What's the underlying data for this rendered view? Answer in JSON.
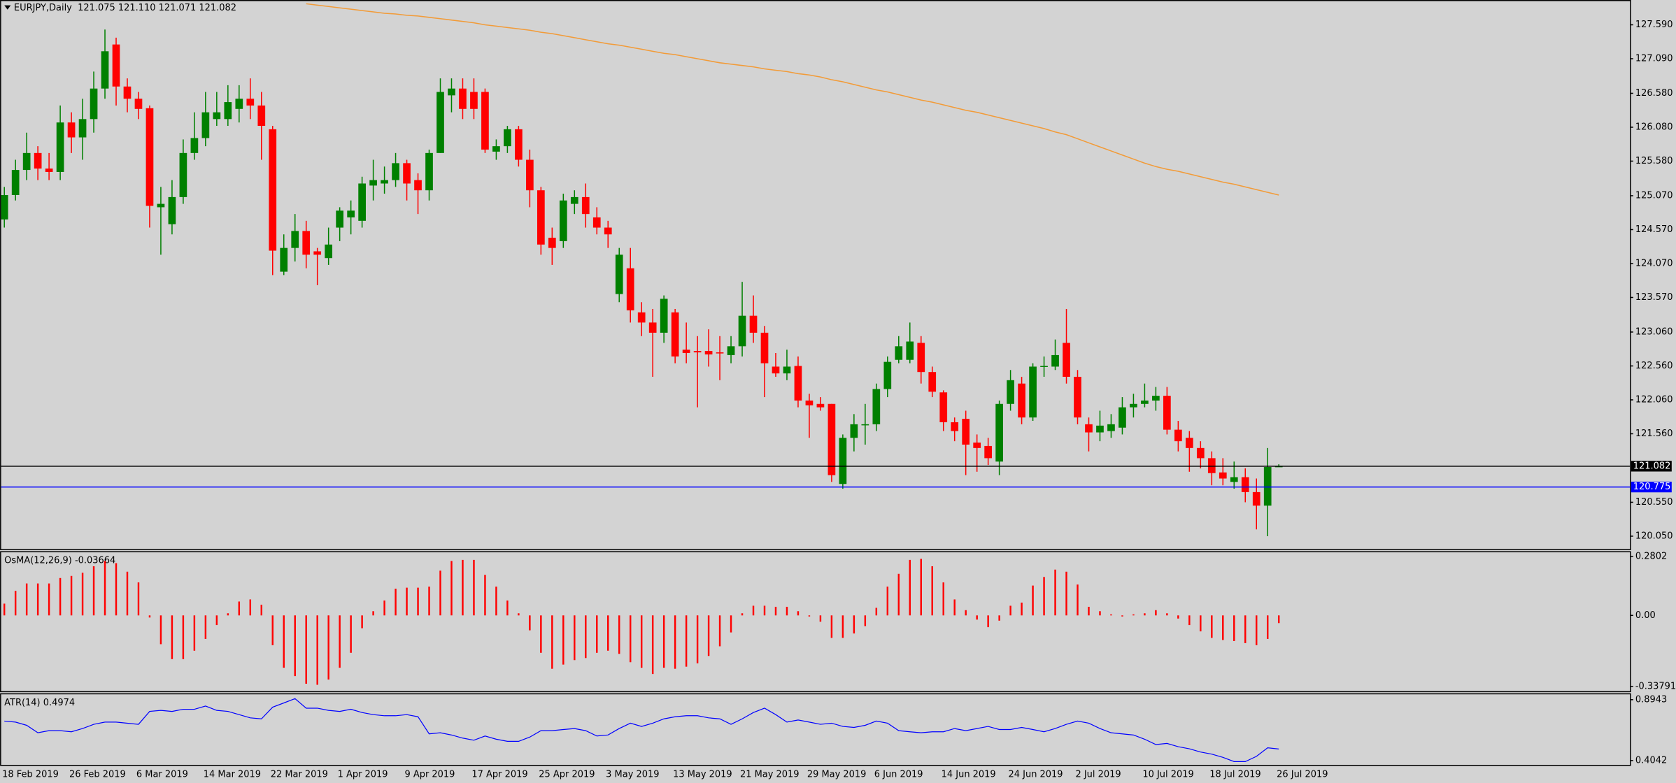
{
  "chart_data": [
    {
      "type": "candlestick",
      "title": "EURJPY,Daily  121.075 121.110 121.071 121.082",
      "categories": [
        "18 Feb 2019",
        null,
        null,
        null,
        null,
        null,
        "26 Feb 2019",
        null,
        null,
        null,
        null,
        null,
        "6 Mar 2019",
        null,
        null,
        null,
        null,
        null,
        "14 Mar 2019",
        null,
        null,
        null,
        null,
        null,
        "22 Mar 2019",
        null,
        null,
        null,
        null,
        null,
        "1 Apr 2019",
        null,
        null,
        null,
        null,
        null,
        "9 Apr 2019",
        null,
        null,
        null,
        null,
        null,
        "17 Apr 2019",
        null,
        null,
        null,
        null,
        null,
        "25 Apr 2019",
        null,
        null,
        null,
        null,
        null,
        "3 May 2019",
        null,
        null,
        null,
        null,
        null,
        "13 May 2019",
        null,
        null,
        null,
        null,
        null,
        "21 May 2019",
        null,
        null,
        null,
        null,
        null,
        "29 May 2019",
        null,
        null,
        null,
        null,
        null,
        "6 Jun 2019",
        null,
        null,
        null,
        null,
        null,
        "14 Jun 2019",
        null,
        null,
        null,
        null,
        null,
        "24 Jun 2019",
        null,
        null,
        null,
        null,
        null,
        "2 Jul 2019",
        null,
        null,
        null,
        null,
        null,
        "10 Jul 2019",
        null,
        null,
        null,
        null,
        null,
        "18 Jul 2019",
        null,
        null,
        null,
        null,
        null,
        "26 Jul 2019"
      ],
      "open": [
        124.72,
        125.08,
        125.45,
        125.7,
        125.47,
        125.42,
        126.15,
        125.93,
        126.2,
        126.65,
        127.3,
        126.68,
        126.5,
        126.36,
        124.9,
        124.65,
        125.05,
        125.7,
        125.92,
        126.2,
        126.2,
        126.35,
        126.5,
        126.4,
        126.05,
        123.95,
        124.3,
        124.55,
        124.25,
        124.15,
        124.6,
        124.75,
        124.7,
        125.22,
        125.25,
        125.3,
        125.55,
        125.3,
        125.15,
        125.7,
        126.55,
        126.65,
        126.6,
        126.6,
        125.72,
        125.8,
        126.05,
        125.6,
        125.15,
        124.45,
        124.4,
        124.95,
        125.05,
        124.75,
        124.6,
        123.62,
        124.0,
        123.35,
        123.2,
        123.05,
        123.35,
        122.8,
        122.78,
        122.78,
        122.76,
        122.72,
        122.85,
        123.3,
        123.05,
        122.55,
        122.45,
        122.56,
        122.05,
        122.0,
        122.0,
        120.82,
        121.5,
        121.7,
        121.7,
        122.22,
        122.65,
        122.65,
        122.9,
        122.47,
        122.17,
        121.73,
        121.78,
        121.43,
        121.38,
        121.15,
        122.0,
        122.3,
        121.8,
        122.55,
        122.55,
        122.9,
        122.4,
        121.7,
        121.58,
        121.6,
        121.65,
        121.95,
        122.0,
        122.05,
        122.12,
        121.62,
        121.5,
        121.35,
        121.2,
        120.99,
        120.85,
        120.92,
        120.7,
        120.5,
        121.075
      ],
      "high": [
        125.2,
        125.6,
        126.0,
        125.8,
        125.7,
        126.4,
        126.3,
        126.5,
        126.9,
        127.52,
        127.4,
        126.8,
        126.6,
        126.4,
        125.2,
        125.3,
        125.9,
        126.3,
        126.6,
        126.6,
        126.7,
        126.7,
        126.8,
        126.6,
        126.1,
        124.5,
        124.8,
        124.7,
        124.3,
        124.6,
        124.9,
        125.0,
        125.35,
        125.6,
        125.5,
        125.7,
        125.6,
        125.4,
        125.75,
        126.8,
        126.8,
        126.8,
        126.8,
        126.65,
        125.9,
        126.1,
        126.1,
        125.75,
        125.2,
        124.6,
        125.1,
        125.15,
        125.25,
        124.9,
        124.7,
        124.3,
        124.3,
        123.5,
        123.4,
        123.6,
        123.4,
        123.2,
        123.0,
        123.1,
        123.0,
        123.0,
        123.8,
        123.6,
        123.15,
        122.75,
        122.8,
        122.7,
        122.15,
        122.1,
        122.0,
        121.55,
        121.85,
        122.0,
        122.3,
        122.7,
        123.0,
        123.2,
        123.0,
        122.55,
        122.2,
        121.8,
        121.9,
        121.55,
        121.5,
        122.05,
        122.5,
        122.4,
        122.6,
        122.7,
        122.95,
        123.4,
        122.5,
        121.8,
        121.9,
        121.85,
        122.1,
        122.15,
        122.3,
        122.25,
        122.25,
        121.75,
        121.6,
        121.45,
        121.3,
        121.2,
        121.15,
        121.05,
        120.9,
        121.35,
        121.11
      ],
      "low": [
        124.6,
        125.0,
        125.3,
        125.3,
        125.3,
        125.3,
        125.7,
        125.6,
        126.0,
        126.5,
        126.4,
        126.3,
        126.2,
        124.6,
        124.2,
        124.5,
        124.95,
        125.6,
        125.8,
        126.1,
        126.1,
        126.15,
        126.2,
        125.6,
        123.9,
        123.9,
        124.1,
        124.0,
        123.75,
        124.05,
        124.4,
        124.5,
        124.6,
        125.0,
        125.1,
        125.2,
        125.0,
        124.8,
        125.0,
        125.7,
        126.3,
        126.2,
        126.2,
        125.7,
        125.6,
        125.7,
        125.5,
        124.9,
        124.2,
        124.05,
        124.3,
        124.8,
        124.6,
        124.5,
        124.3,
        123.5,
        123.2,
        123.0,
        122.4,
        122.9,
        122.6,
        122.6,
        121.95,
        122.55,
        122.35,
        122.6,
        122.7,
        122.9,
        122.1,
        122.4,
        122.35,
        121.95,
        121.5,
        121.9,
        120.85,
        120.75,
        121.3,
        121.4,
        121.6,
        122.1,
        122.6,
        122.6,
        122.3,
        122.1,
        121.6,
        121.45,
        120.95,
        121.0,
        121.1,
        120.95,
        121.9,
        121.7,
        121.75,
        122.4,
        122.5,
        122.3,
        121.7,
        121.3,
        121.45,
        121.5,
        121.55,
        121.8,
        121.95,
        121.9,
        121.55,
        121.3,
        121.0,
        121.05,
        120.8,
        120.8,
        120.75,
        120.55,
        120.15,
        120.05,
        121.071
      ],
      "close": [
        125.08,
        125.45,
        125.7,
        125.47,
        125.42,
        126.15,
        125.93,
        126.2,
        126.65,
        127.2,
        126.68,
        126.5,
        126.35,
        124.92,
        124.95,
        125.05,
        125.7,
        125.92,
        126.3,
        126.3,
        126.45,
        126.5,
        126.4,
        126.1,
        124.26,
        124.3,
        124.55,
        124.2,
        124.2,
        124.35,
        124.85,
        124.85,
        125.25,
        125.3,
        125.3,
        125.55,
        125.25,
        125.15,
        125.7,
        126.6,
        126.65,
        126.35,
        126.35,
        125.75,
        125.8,
        126.05,
        125.6,
        125.15,
        124.35,
        124.3,
        125.0,
        125.05,
        124.8,
        124.6,
        124.5,
        124.2,
        123.38,
        123.2,
        123.05,
        123.55,
        122.7,
        122.75,
        122.76,
        122.73,
        122.75,
        122.85,
        123.3,
        123.05,
        122.6,
        122.45,
        122.55,
        122.05,
        121.98,
        121.95,
        120.95,
        121.5,
        121.7,
        121.7,
        122.22,
        122.62,
        122.85,
        122.92,
        122.47,
        122.18,
        121.73,
        121.6,
        121.4,
        121.35,
        121.2,
        122.0,
        122.35,
        121.8,
        122.55,
        122.56,
        122.72,
        122.4,
        121.8,
        121.58,
        121.68,
        121.7,
        121.95,
        122.0,
        122.05,
        122.12,
        121.62,
        121.45,
        121.35,
        121.2,
        120.98,
        120.9,
        120.92,
        120.7,
        120.5,
        121.07,
        121.082
      ],
      "up_color": "#008000",
      "down_color": "#ff0000",
      "ma": {
        "color": "#f29b38",
        "values": [
          null,
          null,
          null,
          null,
          null,
          null,
          null,
          null,
          null,
          null,
          null,
          null,
          null,
          null,
          null,
          null,
          null,
          null,
          null,
          null,
          null,
          null,
          null,
          null,
          null,
          null,
          null,
          127.9,
          127.88,
          127.86,
          127.84,
          127.82,
          127.8,
          127.78,
          127.76,
          127.75,
          127.73,
          127.72,
          127.7,
          127.68,
          127.66,
          127.64,
          127.62,
          127.59,
          127.57,
          127.55,
          127.53,
          127.51,
          127.48,
          127.46,
          127.43,
          127.4,
          127.37,
          127.34,
          127.31,
          127.29,
          127.26,
          127.23,
          127.2,
          127.17,
          127.15,
          127.12,
          127.09,
          127.06,
          127.03,
          127.01,
          126.99,
          126.97,
          126.94,
          126.92,
          126.9,
          126.87,
          126.85,
          126.82,
          126.78,
          126.75,
          126.71,
          126.67,
          126.63,
          126.6,
          126.56,
          126.52,
          126.48,
          126.45,
          126.41,
          126.37,
          126.33,
          126.3,
          126.26,
          126.22,
          126.18,
          126.14,
          126.1,
          126.06,
          126.01,
          125.97,
          125.91,
          125.85,
          125.79,
          125.73,
          125.67,
          125.61,
          125.55,
          125.5,
          125.46,
          125.43,
          125.39,
          125.35,
          125.31,
          125.27,
          125.24,
          125.2,
          125.16,
          125.12,
          125.08
        ]
      },
      "hlines": [
        {
          "value": 121.082,
          "label": "121.082",
          "color": "#000000"
        },
        {
          "value": 120.775,
          "label": "120.775",
          "color": "#0000ff"
        }
      ],
      "ylim": [
        119.86,
        127.94
      ],
      "yticks": [
        {
          "value": 127.59,
          "label": "127.590"
        },
        {
          "value": 127.09,
          "label": "127.090"
        },
        {
          "value": 126.58,
          "label": "126.580"
        },
        {
          "value": 126.08,
          "label": "126.080"
        },
        {
          "value": 125.58,
          "label": "125.580"
        },
        {
          "value": 125.07,
          "label": "125.070"
        },
        {
          "value": 124.57,
          "label": "124.570"
        },
        {
          "value": 124.07,
          "label": "124.070"
        },
        {
          "value": 123.57,
          "label": "123.570"
        },
        {
          "value": 123.06,
          "label": "123.060"
        },
        {
          "value": 122.56,
          "label": "122.560"
        },
        {
          "value": 122.06,
          "label": "122.060"
        },
        {
          "value": 121.56,
          "label": "121.560"
        },
        {
          "value": 120.55,
          "label": "120.550"
        },
        {
          "value": 120.05,
          "label": "120.050"
        }
      ]
    },
    {
      "type": "bar",
      "title": "OsMA(12,26,9) -0.03664",
      "color": "#ff0000",
      "values": [
        0.056,
        0.117,
        0.152,
        0.152,
        0.152,
        0.178,
        0.188,
        0.203,
        0.234,
        0.259,
        0.249,
        0.208,
        0.157,
        -0.01,
        -0.137,
        -0.208,
        -0.208,
        -0.168,
        -0.112,
        -0.046,
        0.01,
        0.066,
        0.076,
        0.051,
        -0.142,
        -0.249,
        -0.289,
        -0.325,
        -0.33,
        -0.305,
        -0.249,
        -0.178,
        -0.061,
        0.02,
        0.071,
        0.127,
        0.132,
        0.132,
        0.137,
        0.213,
        0.259,
        0.264,
        0.264,
        0.193,
        0.137,
        0.071,
        0.01,
        -0.071,
        -0.178,
        -0.254,
        -0.234,
        -0.213,
        -0.203,
        -0.178,
        -0.168,
        -0.183,
        -0.223,
        -0.249,
        -0.279,
        -0.249,
        -0.254,
        -0.244,
        -0.228,
        -0.193,
        -0.147,
        -0.081,
        0.01,
        0.046,
        0.046,
        0.041,
        0.041,
        0.02,
        -0.005,
        -0.03,
        -0.107,
        -0.107,
        -0.086,
        -0.051,
        0.036,
        0.137,
        0.198,
        0.264,
        0.269,
        0.234,
        0.157,
        0.076,
        0.025,
        -0.02,
        -0.056,
        -0.025,
        0.046,
        0.061,
        0.142,
        0.183,
        0.218,
        0.208,
        0.147,
        0.041,
        0.02,
        0.005,
        -0.005,
        0.005,
        0.01,
        0.025,
        0.01,
        -0.015,
        -0.046,
        -0.076,
        -0.107,
        -0.117,
        -0.122,
        -0.132,
        -0.142,
        -0.112,
        -0.03664
      ],
      "ylim": [
        -0.3604,
        0.3005
      ],
      "yticks": [
        0.2802,
        {
          "value": 0,
          "label": "0.00"
        },
        -0.33791
      ]
    },
    {
      "type": "line",
      "title": "ATR(14) 0.4974",
      "color": "#0000ff",
      "values": [
        0.722,
        0.714,
        0.688,
        0.628,
        0.645,
        0.645,
        0.636,
        0.662,
        0.696,
        0.714,
        0.714,
        0.705,
        0.696,
        0.8,
        0.808,
        0.8,
        0.817,
        0.817,
        0.843,
        0.808,
        0.8,
        0.774,
        0.748,
        0.74,
        0.834,
        0.868,
        0.903,
        0.826,
        0.826,
        0.808,
        0.8,
        0.817,
        0.791,
        0.774,
        0.765,
        0.765,
        0.774,
        0.757,
        0.619,
        0.628,
        0.61,
        0.585,
        0.568,
        0.602,
        0.576,
        0.559,
        0.559,
        0.593,
        0.645,
        0.645,
        0.654,
        0.662,
        0.645,
        0.602,
        0.61,
        0.662,
        0.705,
        0.679,
        0.705,
        0.74,
        0.757,
        0.765,
        0.765,
        0.748,
        0.74,
        0.696,
        0.74,
        0.791,
        0.826,
        0.774,
        0.714,
        0.731,
        0.714,
        0.696,
        0.705,
        0.679,
        0.671,
        0.688,
        0.722,
        0.705,
        0.645,
        0.636,
        0.628,
        0.636,
        0.636,
        0.662,
        0.645,
        0.662,
        0.679,
        0.654,
        0.654,
        0.671,
        0.654,
        0.636,
        0.662,
        0.696,
        0.722,
        0.705,
        0.662,
        0.628,
        0.619,
        0.61,
        0.576,
        0.533,
        0.542,
        0.516,
        0.499,
        0.473,
        0.456,
        0.43,
        0.396,
        0.396,
        0.438,
        0.507,
        0.4974
      ],
      "ylim": [
        0.3698,
        0.9373
      ],
      "yticks": [
        0.8943,
        0.4042
      ]
    }
  ]
}
